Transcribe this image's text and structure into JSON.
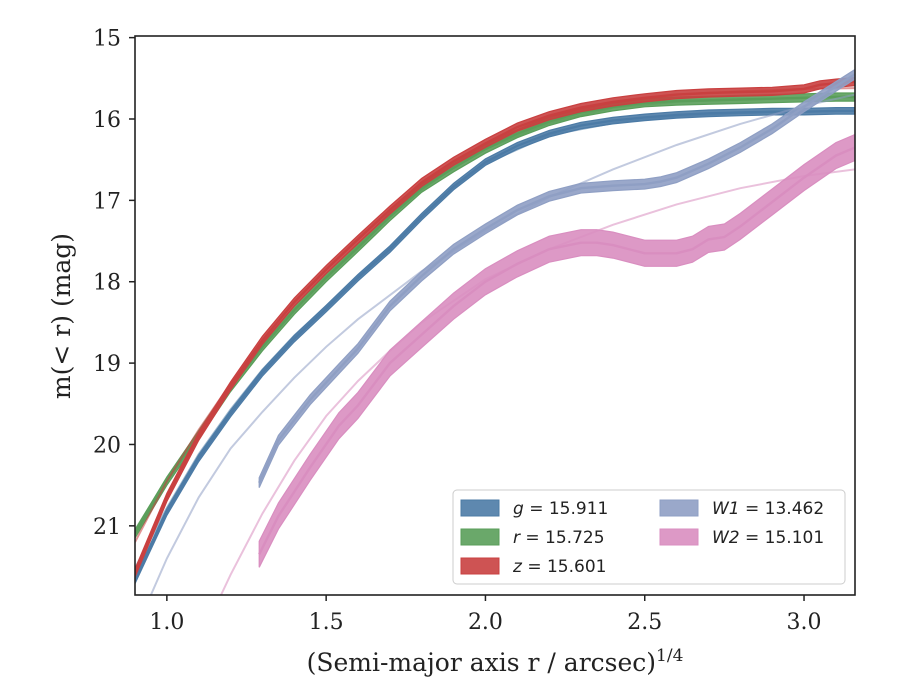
{
  "chart_data": {
    "type": "line",
    "xlabel": "(Semi-major axis r / arcsec)",
    "xlabel_exponent": "1/4",
    "ylabel": "m(< r) (mag)",
    "xlim": [
      0.9,
      3.16
    ],
    "ylim": [
      21.85,
      14.98
    ],
    "y_inverted": true,
    "grid": false,
    "legend_position": "bottom-right",
    "xticks": [
      1.0,
      1.5,
      2.0,
      2.5,
      3.0
    ],
    "xtick_labels": [
      "1.0",
      "1.5",
      "2.0",
      "2.5",
      "3.0"
    ],
    "yticks": [
      15,
      16,
      17,
      18,
      19,
      20,
      21
    ],
    "ytick_labels": [
      "15",
      "16",
      "17",
      "18",
      "19",
      "20",
      "21"
    ],
    "series": [
      {
        "name": "g = 15.911",
        "label_var": "g",
        "label_value": "15.911",
        "color": "#4c7ba6",
        "band_width": 0.04,
        "x": [
          0.9,
          1.0,
          1.1,
          1.2,
          1.3,
          1.4,
          1.5,
          1.6,
          1.7,
          1.8,
          1.9,
          2.0,
          2.1,
          2.2,
          2.3,
          2.4,
          2.5,
          2.6,
          2.7,
          2.8,
          2.9,
          3.0,
          3.1,
          3.16
        ],
        "y": [
          21.67,
          20.83,
          20.17,
          19.62,
          19.12,
          18.7,
          18.33,
          17.95,
          17.6,
          17.2,
          16.83,
          16.53,
          16.33,
          16.18,
          16.08,
          16.02,
          15.98,
          15.95,
          15.93,
          15.92,
          15.91,
          15.91,
          15.9,
          15.9
        ],
        "model": {
          "x": [
            0.9,
            1.0,
            1.1,
            1.2,
            1.3,
            1.4,
            1.5,
            1.6,
            1.7,
            1.8,
            1.9,
            2.0,
            2.2,
            2.4,
            2.6,
            2.8,
            3.0,
            3.16
          ],
          "y": [
            21.52,
            20.78,
            20.12,
            19.57,
            19.08,
            18.66,
            18.3,
            17.93,
            17.57,
            17.2,
            16.85,
            16.55,
            16.2,
            16.05,
            15.97,
            15.93,
            15.91,
            15.9
          ]
        }
      },
      {
        "name": "r = 15.725",
        "label_var": "r",
        "label_value": "15.725",
        "color": "#5a9e5a",
        "band_width": 0.05,
        "x": [
          0.9,
          1.0,
          1.1,
          1.2,
          1.3,
          1.4,
          1.5,
          1.6,
          1.7,
          1.8,
          1.9,
          2.0,
          2.1,
          2.2,
          2.3,
          2.4,
          2.5,
          2.6,
          2.7,
          2.8,
          2.9,
          3.0,
          3.1,
          3.16
        ],
        "y": [
          21.1,
          20.45,
          19.88,
          19.3,
          18.8,
          18.35,
          17.95,
          17.58,
          17.2,
          16.85,
          16.6,
          16.37,
          16.18,
          16.03,
          15.92,
          15.85,
          15.8,
          15.78,
          15.77,
          15.76,
          15.75,
          15.74,
          15.73,
          15.73
        ],
        "model": {
          "x": [
            0.9,
            1.0,
            1.1,
            1.2,
            1.3,
            1.4,
            1.5,
            1.6,
            1.7,
            1.8,
            1.9,
            2.0,
            2.2,
            2.4,
            2.6,
            2.8,
            3.0,
            3.16
          ],
          "y": [
            21.05,
            20.42,
            19.86,
            19.3,
            18.8,
            18.34,
            17.94,
            17.56,
            17.2,
            16.87,
            16.6,
            16.37,
            16.05,
            15.86,
            15.79,
            15.76,
            15.74,
            15.72
          ]
        }
      },
      {
        "name": "z = 15.601",
        "label_var": "z",
        "label_value": "15.601",
        "color": "#c94040",
        "band_width": 0.05,
        "x": [
          0.9,
          1.0,
          1.1,
          1.2,
          1.3,
          1.4,
          1.5,
          1.6,
          1.7,
          1.8,
          1.9,
          2.0,
          2.1,
          2.2,
          2.3,
          2.4,
          2.5,
          2.6,
          2.7,
          2.8,
          2.9,
          3.0,
          3.05,
          3.1,
          3.16
        ],
        "y": [
          21.58,
          20.65,
          19.9,
          19.28,
          18.72,
          18.25,
          17.85,
          17.48,
          17.12,
          16.78,
          16.52,
          16.3,
          16.1,
          15.96,
          15.86,
          15.79,
          15.74,
          15.7,
          15.68,
          15.67,
          15.66,
          15.63,
          15.58,
          15.56,
          15.54
        ],
        "model": {
          "x": [
            0.9,
            1.0,
            1.1,
            1.2,
            1.3,
            1.4,
            1.5,
            1.6,
            1.7,
            1.8,
            1.9,
            2.0,
            2.2,
            2.4,
            2.6,
            2.8,
            3.0,
            3.16
          ],
          "y": [
            21.2,
            20.45,
            19.82,
            19.25,
            18.72,
            18.25,
            17.85,
            17.47,
            17.11,
            16.79,
            16.53,
            16.3,
            15.97,
            15.8,
            15.7,
            15.66,
            15.63,
            15.62
          ]
        }
      },
      {
        "name": "W1 = 13.462",
        "label_var": "W1",
        "label_value": "13.462",
        "color": "#8f9fc4",
        "band_width": 0.06,
        "x": [
          1.29,
          1.35,
          1.45,
          1.54,
          1.6,
          1.7,
          1.8,
          1.9,
          2.0,
          2.1,
          2.2,
          2.3,
          2.4,
          2.5,
          2.55,
          2.6,
          2.7,
          2.8,
          2.9,
          3.0,
          3.1,
          3.16
        ],
        "y": [
          20.47,
          19.95,
          19.45,
          19.07,
          18.82,
          18.3,
          17.93,
          17.6,
          17.35,
          17.12,
          16.95,
          16.85,
          16.82,
          16.8,
          16.77,
          16.72,
          16.55,
          16.35,
          16.12,
          15.85,
          15.6,
          15.45
        ],
        "model": {
          "x": [
            0.95,
            1.0,
            1.1,
            1.2,
            1.3,
            1.4,
            1.5,
            1.6,
            1.8,
            2.0,
            2.2,
            2.4,
            2.6,
            2.8,
            3.0,
            3.16
          ],
          "y": [
            21.85,
            21.4,
            20.65,
            20.05,
            19.6,
            19.18,
            18.8,
            18.46,
            17.87,
            17.38,
            16.96,
            16.62,
            16.32,
            16.06,
            15.84,
            15.7
          ]
        }
      },
      {
        "name": "W2 = 15.101",
        "label_var": "W2",
        "label_value": "15.101",
        "color": "#d98ec0",
        "band_width": 0.16,
        "x": [
          1.29,
          1.35,
          1.45,
          1.54,
          1.6,
          1.7,
          1.8,
          1.9,
          2.0,
          2.1,
          2.2,
          2.3,
          2.35,
          2.4,
          2.5,
          2.6,
          2.65,
          2.7,
          2.75,
          2.8,
          2.9,
          3.0,
          3.1,
          3.16
        ],
        "y": [
          21.35,
          20.88,
          20.28,
          19.77,
          19.52,
          19.0,
          18.65,
          18.3,
          18.0,
          17.78,
          17.6,
          17.52,
          17.52,
          17.55,
          17.65,
          17.65,
          17.6,
          17.48,
          17.45,
          17.32,
          17.02,
          16.72,
          16.45,
          16.35
        ],
        "model": {
          "x": [
            1.17,
            1.2,
            1.3,
            1.4,
            1.5,
            1.6,
            1.7,
            1.8,
            2.0,
            2.2,
            2.4,
            2.6,
            2.8,
            3.0,
            3.16
          ],
          "y": [
            21.85,
            21.6,
            20.85,
            20.2,
            19.65,
            19.22,
            18.85,
            18.5,
            17.97,
            17.6,
            17.3,
            17.05,
            16.85,
            16.7,
            16.62
          ]
        }
      }
    ]
  }
}
